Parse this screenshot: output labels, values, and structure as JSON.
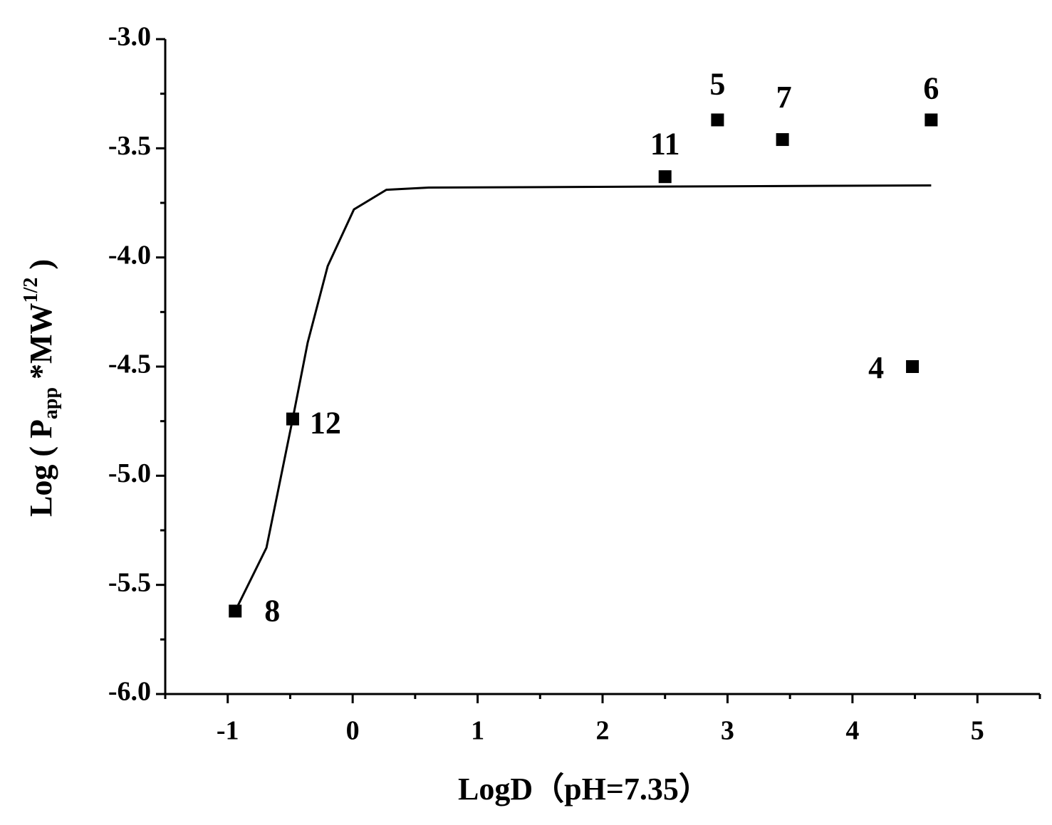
{
  "chart_data": {
    "type": "scatter",
    "xlabel": "LogD（pH=7.35）",
    "ylabel": {
      "main": "Log ( P",
      "sub": "app",
      "mid": " *MW",
      "sup": "1/2",
      "end": " )"
    },
    "xlim": [
      -1.5,
      5.5
    ],
    "ylim": [
      -6,
      -3
    ],
    "xticks": [
      -1,
      0,
      1,
      2,
      3,
      4,
      5
    ],
    "xminorticks": [
      -1.5,
      -0.5,
      0.5,
      1.5,
      2.5,
      3.5,
      4.5,
      5.5
    ],
    "yticks": [
      {
        "value": -3,
        "label": "-3.0"
      },
      {
        "value": -3.5,
        "label": "-3.5"
      },
      {
        "value": -4,
        "label": "-4.0"
      },
      {
        "value": -4.5,
        "label": "-4.5"
      },
      {
        "value": -5,
        "label": "-5.0"
      },
      {
        "value": -5.5,
        "label": "-5.5"
      },
      {
        "value": -6,
        "label": "-6.0"
      }
    ],
    "yminorticks": [
      -3.25,
      -3.75,
      -4.25,
      -4.75,
      -5.25,
      -5.75
    ],
    "points": {
      "color": "#000000",
      "labels": [
        "8",
        "12",
        "11",
        "5",
        "7",
        "6",
        "4"
      ],
      "x": [
        -0.94,
        -0.48,
        2.5,
        2.92,
        3.44,
        4.63,
        4.48
      ],
      "y": [
        -5.62,
        -4.74,
        -3.63,
        -3.37,
        -3.46,
        -3.37,
        -4.5
      ]
    },
    "fit": {
      "color": "#000000",
      "x": [
        -0.94,
        -0.69,
        -0.48,
        -0.36,
        -0.2,
        0.01,
        0.27,
        0.61,
        4.63
      ],
      "y": [
        -5.62,
        -5.33,
        -4.74,
        -4.39,
        -4.04,
        -3.78,
        -3.69,
        -3.68,
        -3.67
      ]
    }
  }
}
